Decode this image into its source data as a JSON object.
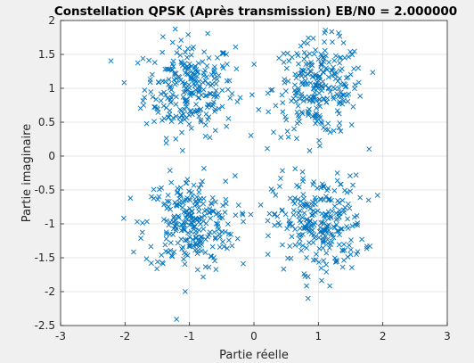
{
  "chart_data": {
    "type": "scatter",
    "title": "Constellation QPSK (Après transmission) EB/N0 = 2.000000",
    "xlabel": "Partie réelle",
    "ylabel": "Partie imaginaire",
    "xlim": [
      -3,
      3
    ],
    "ylim": [
      -2.5,
      2
    ],
    "xticks": [
      "-3",
      "-2",
      "-1",
      "0",
      "1",
      "2",
      "3"
    ],
    "yticks": [
      "-2.5",
      "-2",
      "-1.5",
      "-1",
      "-0.5",
      "0",
      "0.5",
      "1",
      "1.5",
      "2"
    ],
    "grid": true,
    "marker": "x",
    "color": "#0072bd",
    "clusters": [
      {
        "label": "(-1, 1)",
        "center": [
          -1,
          1
        ],
        "std": 0.35,
        "count": 260
      },
      {
        "label": "(1, 1)",
        "center": [
          1,
          1
        ],
        "std": 0.35,
        "count": 260
      },
      {
        "label": "(-1, -1)",
        "center": [
          -1,
          -1
        ],
        "std": 0.35,
        "count": 260
      },
      {
        "label": "(1, -1)",
        "center": [
          1,
          -1
        ],
        "std": 0.35,
        "count": 260
      }
    ]
  }
}
